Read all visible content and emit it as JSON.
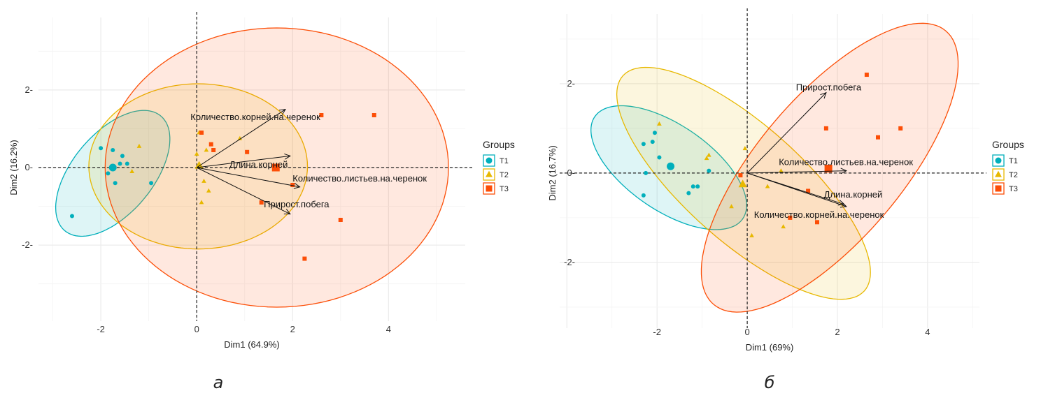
{
  "colors": {
    "T1": "#00AFBB",
    "T2": "#E7B800",
    "T3": "#FC4E07"
  },
  "chart_data": [
    {
      "type": "scatter",
      "subtype": "PCA biplot",
      "caption": "а",
      "xlabel": "Dim1 (64.9%)",
      "ylabel": "Dim2 (16.2%)",
      "xlim": [
        -3.3,
        5.6
      ],
      "ylim": [
        -3.96,
        3.87
      ],
      "xticks": [
        "-2",
        "0",
        "2",
        "4"
      ],
      "yticks": [
        "-2",
        "0",
        "2"
      ],
      "grid": true,
      "legend": {
        "title": "Groups",
        "position": "right",
        "entries": [
          "T1",
          "T2",
          "T3"
        ]
      },
      "series": [
        {
          "name": "T1",
          "shape": "circle",
          "points": [
            [
              -2.0,
              0.5
            ],
            [
              -1.75,
              0.45
            ],
            [
              -1.55,
              0.3
            ],
            [
              -1.45,
              0.1
            ],
            [
              -1.6,
              0.1
            ],
            [
              -1.85,
              -0.15
            ],
            [
              -1.7,
              -0.4
            ],
            [
              -0.95,
              -0.4
            ],
            [
              -2.6,
              -1.25
            ]
          ],
          "centroid": [
            -1.75,
            0.0
          ],
          "ellipse": {
            "center": [
              -1.75,
              -0.15
            ],
            "a": 1.8,
            "b": 0.9,
            "angle_deg": 60
          }
        },
        {
          "name": "T2",
          "shape": "triangle",
          "points": [
            [
              -1.2,
              0.55
            ],
            [
              -1.35,
              -0.1
            ],
            [
              0.05,
              0.9
            ],
            [
              0.0,
              0.35
            ],
            [
              0.2,
              0.45
            ],
            [
              0.15,
              -0.35
            ],
            [
              0.25,
              -0.6
            ],
            [
              0.1,
              -0.9
            ],
            [
              0.9,
              0.75
            ]
          ],
          "centroid": [
            0.05,
            0.05
          ],
          "ellipse": {
            "center": [
              0.03,
              0.03
            ],
            "a": 2.28,
            "b": 2.13,
            "angle_deg": 0
          }
        },
        {
          "name": "T3",
          "shape": "square",
          "points": [
            [
              0.1,
              0.9
            ],
            [
              0.3,
              0.6
            ],
            [
              0.35,
              0.45
            ],
            [
              1.05,
              0.4
            ],
            [
              2.0,
              -0.45
            ],
            [
              1.35,
              -0.9
            ],
            [
              2.6,
              1.35
            ],
            [
              3.7,
              1.35
            ],
            [
              3.0,
              -1.35
            ],
            [
              2.25,
              -2.35
            ]
          ],
          "centroid": [
            1.65,
            0.0
          ],
          "ellipse": {
            "center": [
              1.67,
              0.0
            ],
            "a": 3.58,
            "b": 3.6,
            "angle_deg": 0
          }
        }
      ],
      "variables": [
        {
          "name": "Количество.корней.на.черенок",
          "x": 1.85,
          "y": 1.5,
          "label_at": [
            -0.13,
            1.22
          ]
        },
        {
          "name": "Длина.корней",
          "x": 1.95,
          "y": 0.3,
          "label_at": [
            0.68,
            0.0
          ]
        },
        {
          "name": "Количество.листьев.на.черенок",
          "x": 2.15,
          "y": -0.5,
          "label_at": [
            2.0,
            -0.36
          ]
        },
        {
          "name": "Прирост.побега",
          "x": 1.95,
          "y": -1.2,
          "label_at": [
            1.4,
            -1.03
          ]
        }
      ]
    },
    {
      "type": "scatter",
      "subtype": "PCA biplot",
      "caption": "б",
      "xlabel": "Dim1 (69%)",
      "ylabel": "Dim2 (16.7%)",
      "xlim": [
        -4.16,
        5.15
      ],
      "ylim": [
        -3.47,
        3.56
      ],
      "xticks": [
        "-2",
        "0",
        "2",
        "4"
      ],
      "yticks": [
        "-2",
        "0",
        "2"
      ],
      "grid": true,
      "legend": {
        "title": "Groups",
        "position": "right",
        "entries": [
          "T1",
          "T2",
          "T3"
        ]
      },
      "series": [
        {
          "name": "T1",
          "shape": "circle",
          "points": [
            [
              -2.3,
              0.65
            ],
            [
              -2.05,
              0.9
            ],
            [
              -2.1,
              0.7
            ],
            [
              -1.95,
              0.35
            ],
            [
              -2.25,
              0.0
            ],
            [
              -0.85,
              0.05
            ],
            [
              -1.2,
              -0.3
            ],
            [
              -1.1,
              -0.3
            ],
            [
              -1.3,
              -0.45
            ],
            [
              -2.3,
              -0.5
            ]
          ],
          "centroid": [
            -1.7,
            0.15
          ],
          "ellipse": {
            "center": [
              -1.74,
              0.12
            ],
            "a": 2.0,
            "b": 0.95,
            "angle_deg": -35
          }
        },
        {
          "name": "T2",
          "shape": "triangle",
          "points": [
            [
              -1.95,
              1.1
            ],
            [
              -0.85,
              0.4
            ],
            [
              -0.9,
              0.33
            ],
            [
              -0.05,
              0.55
            ],
            [
              0.75,
              0.05
            ],
            [
              0.45,
              -0.3
            ],
            [
              -0.35,
              -0.75
            ],
            [
              0.8,
              -1.2
            ],
            [
              0.1,
              -1.4
            ]
          ],
          "centroid": [
            -0.1,
            -0.25
          ],
          "ellipse": {
            "center": [
              -0.08,
              -0.23
            ],
            "a": 3.6,
            "b": 1.3,
            "angle_deg": -42
          }
        },
        {
          "name": "T3",
          "shape": "square",
          "points": [
            [
              -0.15,
              -0.05
            ],
            [
              1.75,
              1.0
            ],
            [
              2.65,
              2.2
            ],
            [
              3.4,
              1.0
            ],
            [
              2.9,
              0.8
            ],
            [
              1.35,
              -0.4
            ],
            [
              0.95,
              -1.0
            ],
            [
              1.55,
              -1.1
            ]
          ],
          "centroid": [
            1.8,
            0.1
          ],
          "ellipse": {
            "center": [
              1.83,
              0.12
            ],
            "a": 4.0,
            "b": 1.6,
            "angle_deg": 50
          }
        }
      ],
      "variables": [
        {
          "name": "Прирост.побега",
          "x": 1.75,
          "y": 1.8,
          "label_at": [
            1.08,
            1.85
          ]
        },
        {
          "name": "Количество.листьев.на.черенок",
          "x": 2.2,
          "y": 0.05,
          "label_at": [
            0.7,
            0.18
          ]
        },
        {
          "name": "Длина.корней",
          "x": 2.15,
          "y": -0.7,
          "label_at": [
            1.7,
            -0.55
          ]
        },
        {
          "name": "Количество.корней.на.черенок",
          "x": 2.2,
          "y": -0.75,
          "label_at": [
            0.15,
            -1.0
          ]
        }
      ]
    }
  ]
}
